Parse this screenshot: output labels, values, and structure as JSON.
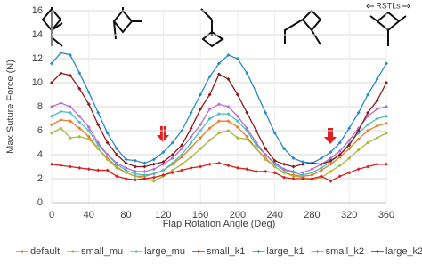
{
  "chart_data": {
    "type": "line",
    "x_label": "Flap Rotation Angle (Deg)",
    "y_label": "Max Suture Force (N)",
    "annotation": "RSTLs",
    "x": [
      0,
      10,
      20,
      30,
      40,
      50,
      60,
      70,
      80,
      90,
      100,
      110,
      120,
      130,
      140,
      150,
      160,
      170,
      180,
      190,
      200,
      210,
      220,
      230,
      240,
      250,
      260,
      270,
      280,
      290,
      300,
      310,
      320,
      330,
      340,
      350,
      360
    ],
    "xlim": [
      0,
      360
    ],
    "xticks": [
      0,
      40,
      80,
      120,
      160,
      200,
      240,
      280,
      320,
      360
    ],
    "ylim": [
      0,
      16
    ],
    "yticks": [
      0,
      2,
      4,
      6,
      8,
      10,
      12,
      14,
      16
    ],
    "grid": true,
    "legend": "bottom",
    "series": [
      {
        "name": "default",
        "color": "#e87d2a",
        "values": [
          6.5,
          6.9,
          6.8,
          6.2,
          5.5,
          4.5,
          3.7,
          3.0,
          2.5,
          2.2,
          2.2,
          2.4,
          2.7,
          3.2,
          3.8,
          4.6,
          5.4,
          6.2,
          6.8,
          6.8,
          6.3,
          5.5,
          4.5,
          3.7,
          3.0,
          2.5,
          2.3,
          2.2,
          2.3,
          2.7,
          3.2,
          3.8,
          4.5,
          5.3,
          6.0,
          6.4,
          6.6
        ]
      },
      {
        "name": "small_mu",
        "color": "#a8b840",
        "values": [
          5.8,
          6.2,
          5.4,
          5.5,
          5.3,
          4.5,
          3.6,
          2.9,
          2.5,
          2.2,
          2.0,
          1.8,
          2.2,
          2.7,
          3.2,
          3.8,
          4.5,
          5.2,
          5.8,
          6.0,
          5.4,
          5.3,
          4.5,
          3.6,
          3.0,
          2.5,
          2.2,
          2.1,
          1.9,
          2.1,
          2.6,
          3.1,
          3.7,
          4.4,
          5.0,
          5.4,
          5.8
        ]
      },
      {
        "name": "large_mu",
        "color": "#4bbfbf",
        "values": [
          7.2,
          7.6,
          7.5,
          6.7,
          6.0,
          4.8,
          4.0,
          3.2,
          2.7,
          2.4,
          2.3,
          2.4,
          2.7,
          3.3,
          4.0,
          5.0,
          6.0,
          7.0,
          7.4,
          7.4,
          6.8,
          6.0,
          4.8,
          4.0,
          3.2,
          2.7,
          2.5,
          2.3,
          2.5,
          2.9,
          3.4,
          4.0,
          4.9,
          5.8,
          6.5,
          7.0,
          7.2
        ]
      },
      {
        "name": "small_k1",
        "color": "#d62020",
        "values": [
          3.2,
          3.1,
          3.0,
          2.9,
          2.8,
          2.7,
          2.7,
          2.2,
          2.0,
          1.9,
          2.0,
          2.1,
          2.3,
          2.5,
          2.7,
          2.9,
          3.0,
          3.2,
          3.3,
          3.1,
          2.9,
          2.8,
          2.6,
          2.6,
          2.5,
          2.1,
          2.0,
          2.0,
          2.0,
          2.2,
          1.8,
          2.2,
          2.5,
          2.8,
          3.0,
          3.2,
          3.2
        ]
      },
      {
        "name": "large_k1",
        "color": "#2a8ac8",
        "values": [
          11.6,
          12.5,
          12.3,
          10.8,
          9.2,
          7.5,
          5.8,
          4.5,
          3.6,
          3.5,
          3.3,
          3.6,
          4.2,
          5.0,
          6.0,
          7.5,
          9.0,
          10.5,
          11.6,
          12.3,
          12.0,
          10.8,
          9.2,
          7.5,
          5.8,
          4.5,
          3.7,
          3.4,
          3.3,
          3.7,
          4.2,
          5.0,
          6.2,
          7.5,
          9.0,
          10.3,
          11.6
        ]
      },
      {
        "name": "small_k2",
        "color": "#b070d0",
        "values": [
          8.0,
          8.3,
          8.0,
          7.2,
          6.3,
          5.0,
          4.0,
          3.3,
          2.9,
          2.6,
          2.6,
          2.8,
          3.2,
          3.7,
          4.5,
          5.5,
          6.5,
          7.8,
          8.2,
          8.0,
          7.2,
          6.2,
          5.0,
          4.0,
          3.3,
          2.8,
          2.6,
          2.5,
          2.8,
          3.2,
          3.7,
          4.3,
          5.2,
          6.2,
          7.2,
          7.8,
          8.0
        ]
      },
      {
        "name": "large_k2",
        "color": "#8b1a1a",
        "values": [
          10.0,
          10.8,
          10.6,
          9.5,
          8.2,
          6.5,
          5.0,
          4.0,
          3.3,
          3.0,
          3.0,
          3.2,
          3.4,
          4.0,
          4.8,
          6.2,
          7.8,
          9.0,
          10.7,
          10.3,
          9.0,
          7.5,
          6.0,
          4.5,
          3.5,
          3.2,
          3.0,
          3.2,
          3.3,
          3.2,
          3.5,
          4.0,
          4.8,
          6.0,
          7.5,
          8.5,
          10.0
        ]
      }
    ]
  }
}
